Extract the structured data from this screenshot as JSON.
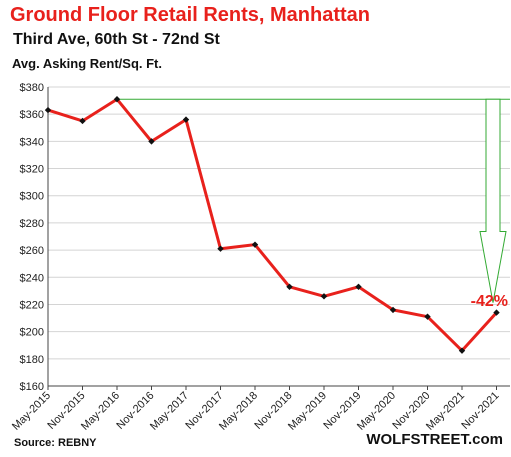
{
  "header": {
    "title": "Ground  Floor Retail Rents, Manhattan",
    "subtitle": "Third Ave, 60th St - 72nd St",
    "ylabel": "Avg. Asking Rent/Sq. Ft."
  },
  "footer": {
    "source": "Source: REBNY",
    "brand": "WOLFSTREET.com"
  },
  "chart_data": {
    "type": "line",
    "title": "Ground  Floor Retail Rents, Manhattan",
    "subtitle": "Third Ave, 60th St - 72nd St",
    "ylabel": "Avg. Asking Rent/Sq. Ft.",
    "xlabel": "",
    "categories": [
      "May-2015",
      "Nov-2015",
      "May-2016",
      "Nov-2016",
      "May-2017",
      "Nov-2017",
      "May-2018",
      "Nov-2018",
      "May-2019",
      "Nov-2019",
      "May-2020",
      "Nov-2020",
      "May-2021",
      "Nov-2021"
    ],
    "values": [
      363,
      355,
      371,
      340,
      356,
      261,
      264,
      233,
      226,
      233,
      216,
      211,
      186,
      214
    ],
    "ylim": [
      160,
      380
    ],
    "ytick_values": [
      160,
      180,
      200,
      220,
      240,
      260,
      280,
      300,
      320,
      340,
      360,
      380
    ],
    "ytick_labels": [
      "$160",
      "$180",
      "$200",
      "$220",
      "$240",
      "$260",
      "$280",
      "$300",
      "$320",
      "$340",
      "$360",
      "$380"
    ],
    "grid": true,
    "line_color": "#e8211c",
    "marker_color": "#111111",
    "annotation": {
      "text": "-42%",
      "from_value": 371,
      "to_value": 214,
      "color": "#e8211c",
      "arrow_color": "#33aa33"
    }
  }
}
